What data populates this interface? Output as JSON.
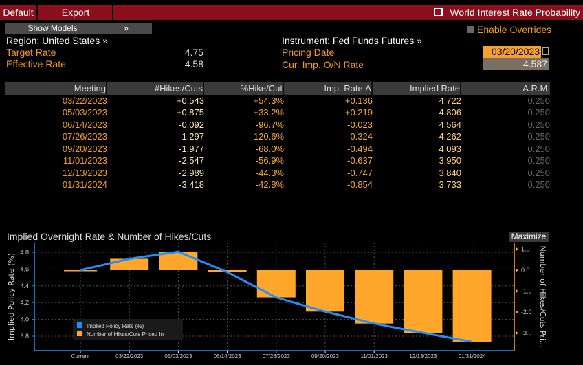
{
  "toolbar": {
    "default_label": "Default",
    "export_label": "Export",
    "title": "World Interest Rate Probability",
    "title_icon": "external-link-icon"
  },
  "controls": {
    "show_models": "Show Models",
    "expand": "»",
    "enable_overrides": "Enable Overrides",
    "region": "Region: United States »",
    "instrument": "Instrument: Fed Funds Futures »",
    "target_rate_label": "Target Rate",
    "target_rate": "4.75",
    "effective_rate_label": "Effective Rate",
    "effective_rate": "4.58",
    "pricing_date_label": "Pricing Date",
    "pricing_date": "03/20/2023",
    "cur_imp_label": "Cur. Imp. O/N Rate",
    "cur_imp": "4.587"
  },
  "table": {
    "headers": [
      "Meeting",
      "#Hikes/Cuts",
      "%Hike/Cut",
      "Imp. Rate Δ",
      "Implied Rate",
      "A.R.M."
    ],
    "rows": [
      [
        "03/22/2023",
        "+0.543",
        "+54.3%",
        "+0.136",
        "4.722",
        "0.250"
      ],
      [
        "05/03/2023",
        "+0.875",
        "+33.2%",
        "+0.219",
        "4.806",
        "0.250"
      ],
      [
        "06/14/2023",
        "-0.092",
        "-96.7%",
        "-0.023",
        "4.564",
        "0.250"
      ],
      [
        "07/26/2023",
        "-1.297",
        "-120.6%",
        "-0.324",
        "4.262",
        "0.250"
      ],
      [
        "09/20/2023",
        "-1.977",
        "-68.0%",
        "-0.494",
        "4.093",
        "0.250"
      ],
      [
        "11/01/2023",
        "-2.547",
        "-56.9%",
        "-0.637",
        "3.950",
        "0.250"
      ],
      [
        "12/13/2023",
        "-2.989",
        "-44.3%",
        "-0.747",
        "3.840",
        "0.250"
      ],
      [
        "01/31/2024",
        "-3.418",
        "-42.8%",
        "-0.854",
        "3.733",
        "0.250"
      ]
    ]
  },
  "chart_panel": {
    "title": "Implied Overnight Rate & Number of Hikes/Cuts",
    "maximize": "Maximize"
  },
  "chart_data": {
    "type": "bar+line",
    "categories": [
      "Current",
      "03/22/2023",
      "05/03/2023",
      "06/14/2023",
      "07/26/2023",
      "09/20/2023",
      "11/01/2023",
      "12/13/2023",
      "01/31/2024"
    ],
    "series": [
      {
        "name": "Implied Policy Rate (%)",
        "type": "line",
        "axis": "left",
        "color": "#1e8fff",
        "values": [
          4.587,
          4.722,
          4.806,
          4.564,
          4.262,
          4.093,
          3.95,
          3.84,
          3.733
        ]
      },
      {
        "name": "Number of Hikes/Cuts Priced In",
        "type": "bar",
        "axis": "right",
        "color": "#ffa62b",
        "values": [
          0,
          0.543,
          0.875,
          -0.092,
          -1.297,
          -1.977,
          -2.547,
          -2.989,
          -3.418
        ]
      }
    ],
    "ylabel": "Implied Policy Rate (%)",
    "y2label": "Number of Hikes/Cuts Pri...",
    "yticks": [
      "3.8",
      "4.0",
      "4.2",
      "4.4",
      "4.6",
      "4.8"
    ],
    "y2ticks": [
      "1.0",
      "0.0",
      "-1.0",
      "-2.0",
      "-3.0"
    ],
    "ylim": [
      3.68,
      4.92
    ],
    "y2lim": [
      -3.9,
      1.35
    ],
    "grid": true,
    "legend": "bottom-left"
  }
}
